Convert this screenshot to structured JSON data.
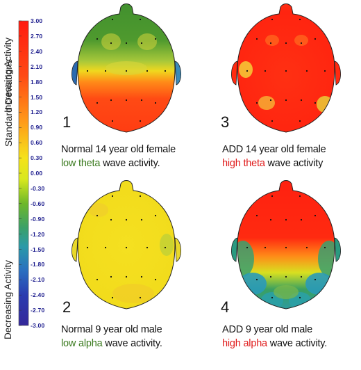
{
  "colorbar": {
    "ticks": [
      "3.00",
      "2.70",
      "2.40",
      "2.10",
      "1.80",
      "1.50",
      "1.20",
      "0.90",
      "0.60",
      "0.30",
      "0.00",
      "-0.30",
      "-0.60",
      "-0.90",
      "-1.20",
      "-1.50",
      "-1.80",
      "-2.10",
      "-2.40",
      "-2.70",
      "-3.00"
    ],
    "label_standard_deviations": "Standard Deviations",
    "label_increasing": "Increasing Activity",
    "label_decreasing": "Decreasing Activity"
  },
  "panels": [
    {
      "number": "1",
      "caption_line1": "Normal 14 year old female",
      "caption_highlight": "low theta",
      "caption_rest": " wave activity.",
      "highlight_color": "#3a7a1e"
    },
    {
      "number": "3",
      "caption_line1": "ADD 14 year old female",
      "caption_highlight": "high theta",
      "caption_rest": " wave activity",
      "highlight_color": "#e01b1b"
    },
    {
      "number": "2",
      "caption_line1": "Normal 9 year old male",
      "caption_highlight": "low alpha",
      "caption_rest": " wave activity.",
      "highlight_color": "#3a7a1e"
    },
    {
      "number": "4",
      "caption_line1": "ADD 9 year old male",
      "caption_highlight": "high alpha",
      "caption_rest": " wave activity.",
      "highlight_color": "#e01b1b"
    }
  ]
}
